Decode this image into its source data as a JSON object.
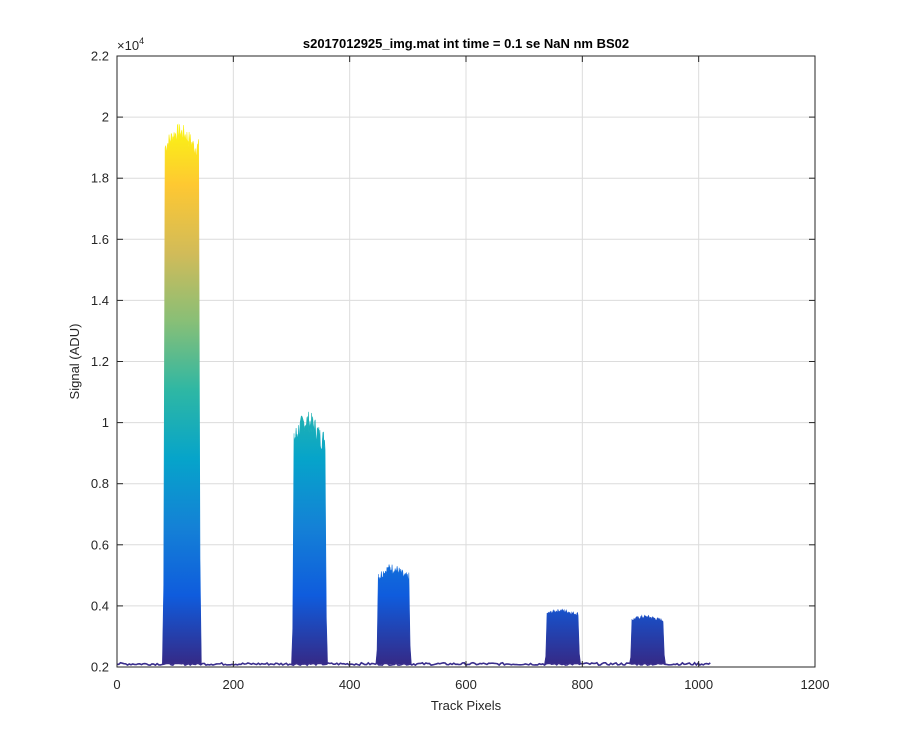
{
  "chart_data": {
    "type": "area",
    "title": "s2017012925_img.mat int time = 0.1 se  NaN nm BS02",
    "xlabel": "Track Pixels",
    "ylabel": "Signal (ADU)",
    "y_multiplier": "×10",
    "y_multiplier_exponent": "4",
    "xlim": [
      0,
      1200
    ],
    "ylim": [
      0.2,
      2.2
    ],
    "xticks": [
      0,
      200,
      400,
      600,
      800,
      1000,
      1200
    ],
    "xtick_labels": [
      "0",
      "200",
      "400",
      "600",
      "800",
      "1000",
      "1200"
    ],
    "yticks": [
      0.2,
      0.4,
      0.6,
      0.8,
      1,
      1.2,
      1.4,
      1.6,
      1.8,
      2,
      2.2
    ],
    "ytick_labels": [
      "0.2",
      "0.4",
      "0.6",
      "0.8",
      "1",
      "1.2",
      "1.4",
      "1.6",
      "1.8",
      "2",
      "2.2"
    ],
    "grid": true,
    "baseline": 0.21,
    "data_x_range": [
      0,
      1020
    ],
    "colormap": "parula",
    "colormap_stops": [
      "#352a87",
      "#0f5cdd",
      "#1481d6",
      "#06a4ca",
      "#2eb7a4",
      "#87bf77",
      "#d1bb59",
      "#fec832",
      "#f9fb0e"
    ],
    "peaks": [
      {
        "x_start": 78,
        "x_end": 145,
        "peak": 1.98,
        "plateau": 1.93
      },
      {
        "x_start": 300,
        "x_end": 362,
        "peak": 1.04,
        "plateau": 0.98
      },
      {
        "x_start": 445,
        "x_end": 506,
        "peak": 0.54,
        "plateau": 0.51
      },
      {
        "x_start": 735,
        "x_end": 797,
        "peak": 0.39,
        "plateau": 0.38
      },
      {
        "x_start": 881,
        "x_end": 943,
        "peak": 0.37,
        "plateau": 0.36
      }
    ]
  }
}
